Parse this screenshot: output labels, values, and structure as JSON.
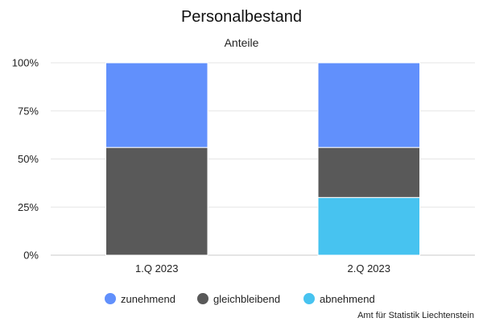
{
  "chart_data": {
    "type": "bar",
    "stacked": true,
    "title": "Personalbestand",
    "subtitle": "Anteile",
    "categories": [
      "1.Q 2023",
      "2.Q 2023"
    ],
    "series": [
      {
        "name": "abnehmend",
        "values": [
          0,
          30
        ],
        "color": "#47c3f0"
      },
      {
        "name": "gleichbleibend",
        "values": [
          56,
          26
        ],
        "color": "#595959"
      },
      {
        "name": "zunehmend",
        "values": [
          44,
          44
        ],
        "color": "#6190fc"
      }
    ],
    "legend_order": [
      "zunehmend",
      "gleichbleibend",
      "abnehmend"
    ],
    "ylim": [
      0,
      100
    ],
    "yticks": [
      "0%",
      "25%",
      "50%",
      "75%",
      "100%"
    ],
    "grid": true,
    "legend_position": "bottom",
    "credit": "Amt für Statistik Liechtenstein"
  }
}
